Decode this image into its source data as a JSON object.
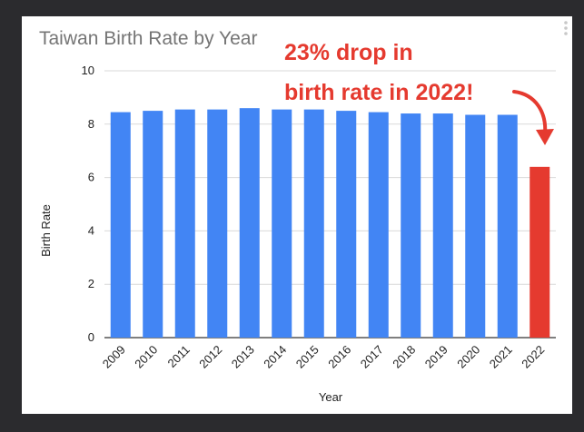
{
  "chart_data": {
    "type": "bar",
    "title": "Taiwan Birth Rate by Year",
    "xlabel": "Year",
    "ylabel": "Birth Rate",
    "ylim": [
      0,
      10
    ],
    "yticks": [
      0,
      2,
      4,
      6,
      8,
      10
    ],
    "categories": [
      "2009",
      "2010",
      "2011",
      "2012",
      "2013",
      "2014",
      "2015",
      "2016",
      "2017",
      "2018",
      "2019",
      "2020",
      "2021",
      "2022"
    ],
    "values": [
      8.45,
      8.5,
      8.55,
      8.55,
      8.6,
      8.55,
      8.55,
      8.5,
      8.45,
      8.4,
      8.4,
      8.35,
      8.35,
      6.4
    ],
    "bar_colors": [
      "#4285f4",
      "#4285f4",
      "#4285f4",
      "#4285f4",
      "#4285f4",
      "#4285f4",
      "#4285f4",
      "#4285f4",
      "#4285f4",
      "#4285f4",
      "#4285f4",
      "#4285f4",
      "#4285f4",
      "#e53a2f"
    ],
    "grid": true,
    "annotation": {
      "line1": "23% drop in",
      "line2": "birth rate in 2022!",
      "color": "#e53a2f"
    }
  }
}
